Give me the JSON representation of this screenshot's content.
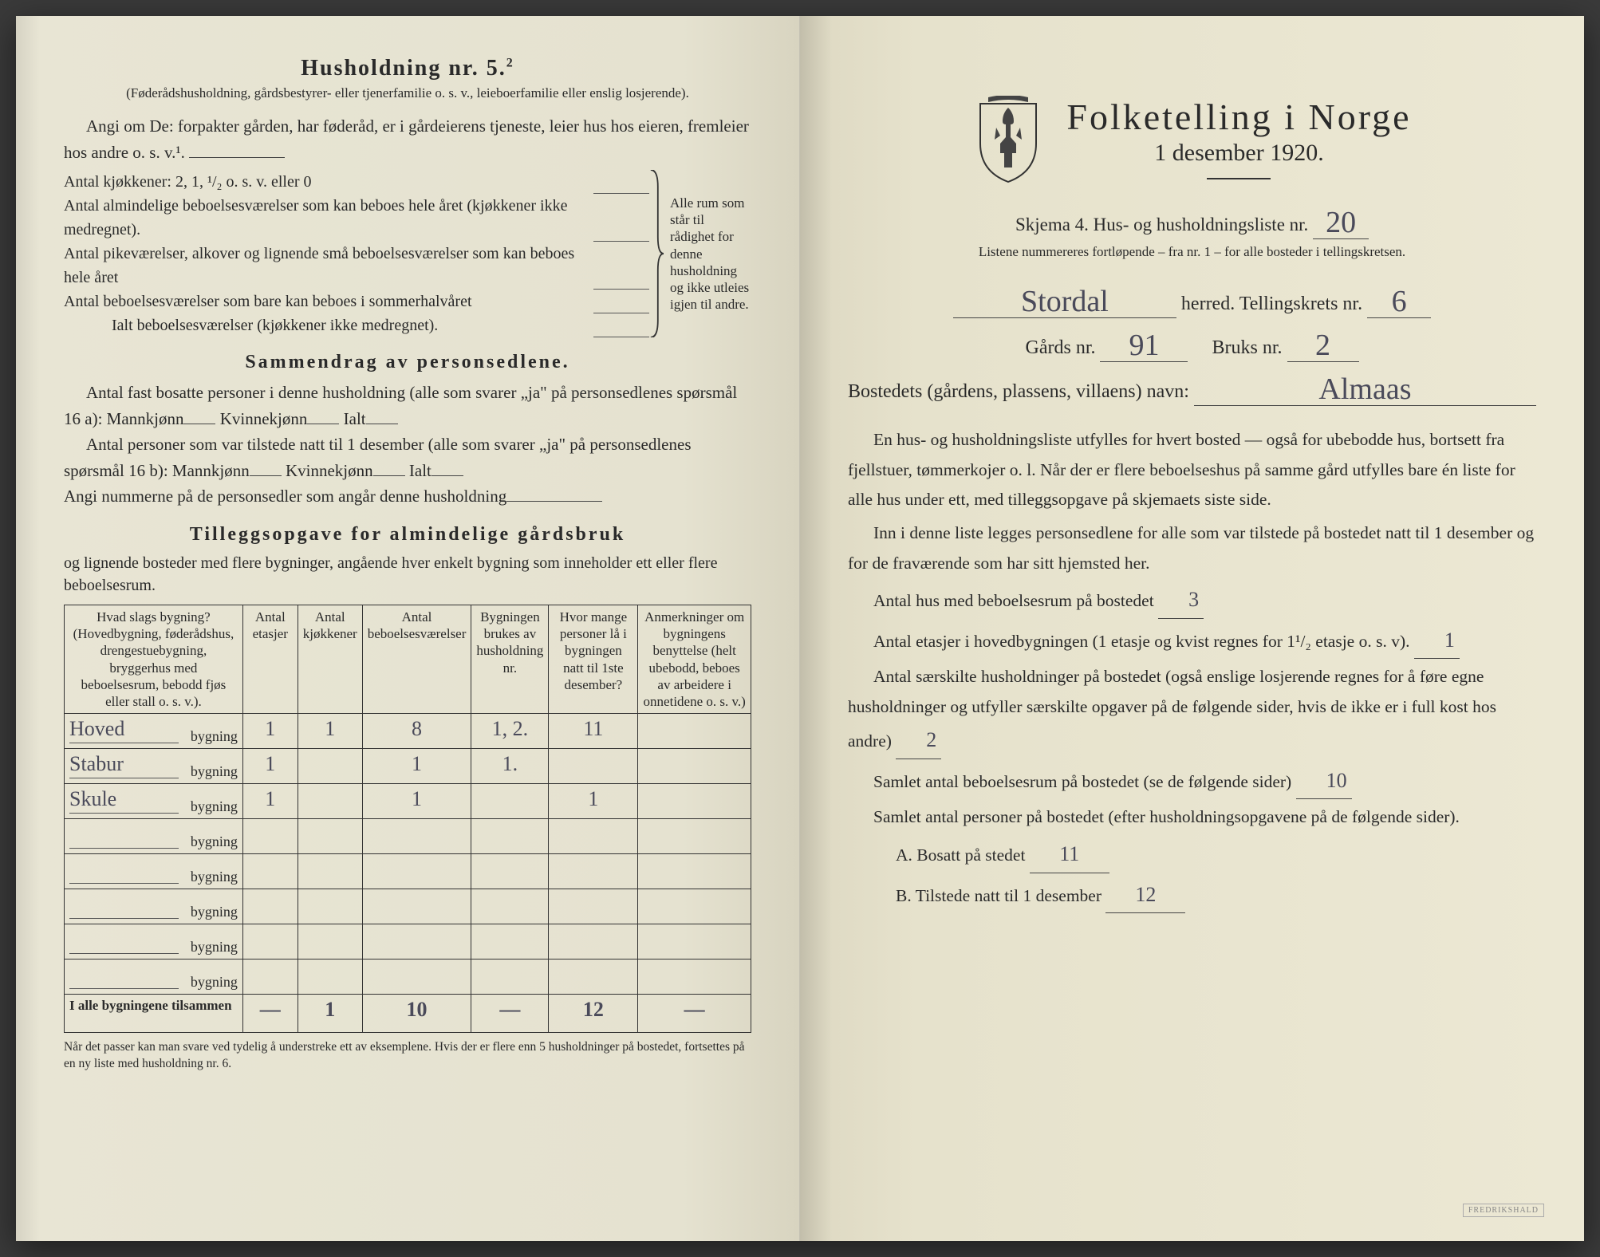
{
  "left": {
    "title": "Husholdning nr. 5.",
    "title_sup": "2",
    "note": "(Føderådshusholdning, gårdsbestyrer- eller tjenerfamilie o. s. v., leieboerfamilie eller enslig losjerende).",
    "angi": "Angi om De: forpakter gården, har føderåd, er i gårdeierens tjeneste, leier hus hos eieren, fremleier hos andre o. s. v.¹.",
    "kitchens_label": "Antal kjøkkener: 2, 1, ¹/₂ o. s. v. eller 0",
    "rooms": [
      "Antal almindelige beboelsesværelser som kan beboes hele året (kjøkkener ikke medregnet).",
      "Antal pikeværelser, alkover og lignende små beboelsesværelser som kan beboes hele året",
      "Antal beboelsesværelser som bare kan beboes i sommerhalvåret"
    ],
    "rooms_total": "Ialt beboelsesværelser (kjøkkener ikke medregnet).",
    "brace_caption": "Alle rum som står til rådighet for denne husholdning og ikke utleies igjen til andre.",
    "summary_title": "Sammendrag av personsedlene.",
    "summary_l1": "Antal fast bosatte personer i denne husholdning (alle som svarer „ja\" på personsedlenes spørsmål 16 a): Mannkjønn",
    "summary_kv": "Kvinnekjønn",
    "summary_ialt": "Ialt",
    "summary_l2": "Antal personer som var tilstede natt til 1 desember (alle som svarer „ja\" på personsedlenes spørsmål 16 b): Mannkjønn",
    "angi_num": "Angi nummerne på de personsedler som angår denne husholdning",
    "tillegg_title": "Tilleggsopgave for almindelige gårdsbruk",
    "tillegg_sub": "og lignende bosteder med flere bygninger, angående hver enkelt bygning som inneholder ett eller flere beboelsesrum.",
    "table": {
      "headers": [
        "Hvad slags bygning?\n(Hovedbygning, føderådshus, drengestuebygning, bryggerhus med beboelsesrum, bebodd fjøs eller stall o. s. v.).",
        "Antal etasjer",
        "Antal kjøkkener",
        "Antal beboelsesværelser",
        "Bygningen brukes av husholdning nr.",
        "Hvor mange personer lå i bygningen natt til 1ste desember?",
        "Anmerkninger om bygningens benyttelse (helt ubebodd, beboes av arbeidere i onnetidene o. s. v.)"
      ],
      "printed_suffix": "bygning",
      "rows": [
        {
          "hw": "Hoved",
          "c": [
            "1",
            "1",
            "8",
            "1, 2.",
            "11",
            ""
          ]
        },
        {
          "hw": "Stabur",
          "c": [
            "1",
            "",
            "1",
            "1.",
            "",
            ""
          ]
        },
        {
          "hw": "Skule",
          "c": [
            "1",
            "",
            "1",
            "",
            "1",
            ""
          ]
        },
        {
          "hw": "",
          "c": [
            "",
            "",
            "",
            "",
            "",
            ""
          ]
        },
        {
          "hw": "",
          "c": [
            "",
            "",
            "",
            "",
            "",
            ""
          ]
        },
        {
          "hw": "",
          "c": [
            "",
            "",
            "",
            "",
            "",
            ""
          ]
        },
        {
          "hw": "",
          "c": [
            "",
            "",
            "",
            "",
            "",
            ""
          ]
        },
        {
          "hw": "",
          "c": [
            "",
            "",
            "",
            "",
            "",
            ""
          ]
        }
      ],
      "total_label": "I alle bygningene tilsammen",
      "total": [
        "—",
        "1",
        "10",
        "—",
        "12",
        "—"
      ]
    },
    "footnote": "Når det passer kan man svare ved tydelig å understreke ett av eksemplene.\nHvis der er flere enn 5 husholdninger på bostedet, fortsettes på en ny liste med husholdning nr. 6."
  },
  "right": {
    "title": "Folketelling i Norge",
    "subtitle": "1 desember 1920.",
    "form_line_pre": "Skjema 4.  Hus- og husholdningsliste nr.",
    "form_nr": "20",
    "listene": "Listene nummereres fortløpende – fra nr. 1 – for alle bosteder i tellingskretsen.",
    "herred_hw": "Stordal",
    "herred_lbl": "herred.   Tellingskrets nr.",
    "krets_nr": "6",
    "gard_lbl": "Gårds nr.",
    "gard_nr": "91",
    "bruk_lbl": "Bruks nr.",
    "bruk_nr": "2",
    "bosted_lbl": "Bostedets (gårdens, plassens, villaens) navn:",
    "bosted_hw": "Almaas",
    "para1": "En hus- og husholdningsliste utfylles for hvert bosted — også for ubebodde hus, bortsett fra fjellstuer, tømmerkojer o. l. Når der er flere beboelseshus på samme gård utfylles bare én liste for alle hus under ett, med tilleggsopgave på skjemaets siste side.",
    "para2": "Inn i denne liste legges personsedlene for alle som var tilstede på bostedet natt til 1 desember og for de fraværende som har sitt hjemsted her.",
    "q1_lbl": "Antal hus med beboelsesrum på bostedet",
    "q1_hw": "3",
    "q2_lbl": "Antal etasjer i hovedbygningen (1 etasje og kvist regnes for 1¹/₂ etasje o. s. v).",
    "q2_hw": "1",
    "q3_lbl": "Antal særskilte husholdninger på bostedet (også enslige losjerende regnes for å føre egne husholdninger og utfyller særskilte opgaver på de følgende sider, hvis de ikke er i full kost hos andre)",
    "q3_hw": "2",
    "q4_lbl": "Samlet antal beboelsesrum på bostedet (se de følgende sider)",
    "q4_hw": "10",
    "q5_lbl": "Samlet antal personer på bostedet (efter husholdningsopgavene på de følgende sider).",
    "qa_lbl": "A.  Bosatt på stedet",
    "qa_hw": "11",
    "qb_lbl": "B.  Tilstede natt til 1 desember",
    "qb_hw": "12",
    "stamp": "FREDRIKSHALD"
  },
  "colors": {
    "ink": "#2a2a2a",
    "handwriting": "#4a4a5a",
    "paper_left": "#e8e5d4",
    "paper_right": "#ece8d4"
  }
}
